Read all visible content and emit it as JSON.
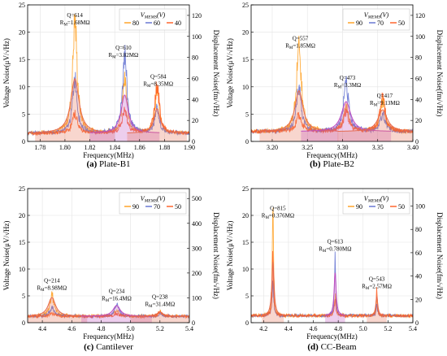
{
  "chart_data": [
    {
      "type": "line",
      "panel_letter": "(a)",
      "title": "Plate-B1",
      "xlabel": "Frequency(MHz)",
      "ylabel_left": "Voltage Noise(μV/√Hz)",
      "ylabel_right": "Displacement Noise(fm/√Hz)",
      "xlim": [
        1.77,
        1.9
      ],
      "ylim_left": [
        0,
        25
      ],
      "ylim_right": [
        0,
        130
      ],
      "xticks": [
        1.78,
        1.8,
        1.82,
        1.84,
        1.86,
        1.88,
        1.9
      ],
      "xtick_labels": [
        "1.78",
        "1.80",
        "1.82",
        "1.84",
        "1.86",
        "1.88",
        "1.90"
      ],
      "yticks_left": [
        0,
        5,
        10,
        15,
        20,
        25
      ],
      "yticks_right": [
        0,
        20,
        40,
        60,
        80,
        100,
        120
      ],
      "baseline": 1.5,
      "legend": {
        "title": "V_MEMS(V)",
        "title_main": "V",
        "title_sub": "MEMS",
        "title_tail": "(V)",
        "entries": [
          "80",
          "60",
          "40"
        ],
        "position": "top-right"
      },
      "series": [
        {
          "name": "80",
          "color": "#ff9e1b",
          "peaks": [
            {
              "x": 1.808,
              "y": 20.5,
              "w": 0.0022
            },
            {
              "x": 1.848,
              "y": 9.5,
              "w": 0.0022
            },
            {
              "x": 1.874,
              "y": 8.0,
              "w": 0.002
            }
          ]
        },
        {
          "name": "60",
          "color": "#5f6fd0",
          "peaks": [
            {
              "x": 1.808,
              "y": 10.0,
              "w": 0.0022
            },
            {
              "x": 1.848,
              "y": 14.5,
              "w": 0.0022
            },
            {
              "x": 1.874,
              "y": 4.5,
              "w": 0.002
            }
          ]
        },
        {
          "name": "40",
          "color": "#ff5a1e",
          "peaks": [
            {
              "x": 1.808,
              "y": 3.5,
              "w": 0.0025
            },
            {
              "x": 1.848,
              "y": 4.0,
              "w": 0.0025
            },
            {
              "x": 1.874,
              "y": 9.0,
              "w": 0.0022
            }
          ]
        }
      ],
      "fits": [
        {
          "x": 1.808,
          "y": 10.0,
          "w": 0.004,
          "color": "#e56a4f"
        },
        {
          "x": 1.848,
          "y": 7.0,
          "w": 0.0035,
          "color": "#c04fc0"
        },
        {
          "x": 1.874,
          "y": 4.5,
          "w": 0.003,
          "color": "#e56a4f"
        }
      ],
      "annotations": [
        {
          "q": "Q=614",
          "r_main": "R",
          "r_sub": "M",
          "r_val": "=1.68MΩ",
          "x": 1.808,
          "y": 22.8
        },
        {
          "q": "Q=610",
          "r_main": "R",
          "r_sub": "M",
          "r_val": "=3.82MΩ",
          "x": 1.847,
          "y": 16.8
        },
        {
          "q": "Q=584",
          "r_main": "R",
          "r_sub": "M",
          "r_val": "=8.35MΩ",
          "x": 1.875,
          "y": 11.5
        }
      ]
    },
    {
      "type": "line",
      "panel_letter": "(b)",
      "title": "Plate-B2",
      "xlabel": "Frequency(MHz)",
      "ylabel_left": "Voltage Noise(μV/√Hz)",
      "ylabel_right": "Displacement Noise(fm/√Hz)",
      "xlim": [
        3.17,
        3.4
      ],
      "ylim_left": [
        0,
        25
      ],
      "ylim_right": [
        0,
        130
      ],
      "xticks": [
        3.2,
        3.25,
        3.3,
        3.35,
        3.4
      ],
      "xtick_labels": [
        "3.20",
        "3.25",
        "3.30",
        "3.35",
        "3.40"
      ],
      "yticks_left": [
        0,
        5,
        10,
        15,
        20,
        25
      ],
      "yticks_right": [
        0,
        20,
        40,
        60,
        80,
        100,
        120
      ],
      "baseline": 1.8,
      "legend": {
        "title": "V_MEMS(V)",
        "title_main": "V",
        "title_sub": "MEMS",
        "title_tail": "(V)",
        "entries": [
          "90",
          "70",
          "50"
        ],
        "position": "top-right"
      },
      "series": [
        {
          "name": "90",
          "color": "#ff9e1b",
          "peaks": [
            {
              "x": 3.238,
              "y": 16.0,
              "w": 0.004
            },
            {
              "x": 3.305,
              "y": 4.5,
              "w": 0.0045
            },
            {
              "x": 3.357,
              "y": 5.5,
              "w": 0.0045
            }
          ]
        },
        {
          "name": "70",
          "color": "#5f6fd0",
          "peaks": [
            {
              "x": 3.238,
              "y": 8.5,
              "w": 0.004
            },
            {
              "x": 3.305,
              "y": 8.5,
              "w": 0.0045
            },
            {
              "x": 3.357,
              "y": 3.0,
              "w": 0.0045
            }
          ]
        },
        {
          "name": "50",
          "color": "#ff5a1e",
          "peaks": [
            {
              "x": 3.238,
              "y": 3.0,
              "w": 0.0045
            },
            {
              "x": 3.305,
              "y": 3.5,
              "w": 0.005
            },
            {
              "x": 3.357,
              "y": 6.0,
              "w": 0.0045
            }
          ]
        }
      ],
      "fits": [
        {
          "x": 3.238,
          "y": 7.5,
          "w": 0.007,
          "color": "#e56a4f"
        },
        {
          "x": 3.305,
          "y": 5.5,
          "w": 0.008,
          "color": "#c04fc0"
        },
        {
          "x": 3.357,
          "y": 4.0,
          "w": 0.008,
          "color": "#e56a4f"
        }
      ],
      "annotations": [
        {
          "q": "Q=557",
          "r_main": "R",
          "r_sub": "M",
          "r_val": "=1.85MΩ",
          "x": 3.24,
          "y": 18.5
        },
        {
          "q": "Q=473",
          "r_main": "R",
          "r_sub": "M",
          "r_val": "=3.3MΩ",
          "x": 3.307,
          "y": 11.3
        },
        {
          "q": "Q=417",
          "r_main": "R",
          "r_sub": "M",
          "r_val": "=9.13MΩ",
          "x": 3.36,
          "y": 8.0
        }
      ]
    },
    {
      "type": "line",
      "panel_letter": "(c)",
      "title": "Cantilever",
      "xlabel": "Frequency(MHz)",
      "ylabel_left": "Voltage Noise(μV/√Hz)",
      "ylabel_right": "Displacement Noise(fm/√Hz)",
      "xlim": [
        4.3,
        5.4
      ],
      "ylim_left": [
        0,
        25
      ],
      "ylim_right": [
        0,
        540
      ],
      "xticks": [
        4.4,
        4.6,
        4.8,
        5.0,
        5.2,
        5.4
      ],
      "xtick_labels": [
        "4.4",
        "4.6",
        "4.8",
        "5.0",
        "5.2",
        "5.4"
      ],
      "yticks_left": [
        0,
        5,
        10,
        15,
        20,
        25
      ],
      "yticks_right": [
        0,
        100,
        200,
        300,
        400,
        500
      ],
      "baseline": 1.2,
      "legend": {
        "title": "V_MEMS(V)",
        "title_main": "V",
        "title_sub": "MEMS",
        "title_tail": "(V)",
        "entries": [
          "90",
          "70",
          "50"
        ],
        "position": "top-right"
      },
      "series": [
        {
          "name": "90",
          "color": "#ff9e1b",
          "peaks": [
            {
              "x": 4.465,
              "y": 3.8,
              "w": 0.018
            },
            {
              "x": 4.905,
              "y": 1.2,
              "w": 0.016
            },
            {
              "x": 5.2,
              "y": 0.8,
              "w": 0.015
            }
          ]
        },
        {
          "name": "70",
          "color": "#5f6fd0",
          "peaks": [
            {
              "x": 4.465,
              "y": 1.5,
              "w": 0.02
            },
            {
              "x": 4.905,
              "y": 2.4,
              "w": 0.016
            },
            {
              "x": 5.2,
              "y": 0.4,
              "w": 0.015
            }
          ]
        },
        {
          "name": "50",
          "color": "#ff5a1e",
          "peaks": [
            {
              "x": 4.465,
              "y": 0.5,
              "w": 0.02
            },
            {
              "x": 4.905,
              "y": 0.5,
              "w": 0.02
            },
            {
              "x": 5.2,
              "y": 0.9,
              "w": 0.015
            }
          ]
        }
      ],
      "fits": [
        {
          "x": 4.465,
          "y": 3.5,
          "w": 0.03,
          "color": "#e56a4f"
        },
        {
          "x": 4.905,
          "y": 2.0,
          "w": 0.03,
          "color": "#c04fc0"
        },
        {
          "x": 5.2,
          "y": 0.8,
          "w": 0.025,
          "color": "#e56a4f"
        }
      ],
      "annotations": [
        {
          "q": "Q=214",
          "r_main": "R",
          "r_sub": "M",
          "r_val": "=8.98MΩ",
          "x": 4.465,
          "y": 7.5
        },
        {
          "q": "Q=234",
          "r_main": "R",
          "r_sub": "M",
          "r_val": "=16.4MΩ",
          "x": 4.905,
          "y": 5.5
        },
        {
          "q": "Q=238",
          "r_main": "R",
          "r_sub": "M",
          "r_val": "=31.4MΩ",
          "x": 5.2,
          "y": 4.5
        }
      ]
    },
    {
      "type": "line",
      "panel_letter": "(d)",
      "title": "CC-Beam",
      "xlabel": "Frequency(MHz)",
      "ylabel_left": "Voltage Noise(μV/√Hz)",
      "ylabel_right": "Displacement Noise(fm/√Hz)",
      "xlim": [
        4.1,
        5.4
      ],
      "ylim_left": [
        0,
        25
      ],
      "ylim_right": [
        0,
        115
      ],
      "xticks": [
        4.2,
        4.4,
        4.6,
        4.8,
        5.0,
        5.2,
        5.4
      ],
      "xtick_labels": [
        "4.2",
        "4.4",
        "4.6",
        "4.8",
        "5.0",
        "5.2",
        "5.4"
      ],
      "yticks_left": [
        0,
        5,
        10,
        15,
        20,
        25
      ],
      "yticks_right": [
        0,
        20,
        40,
        60,
        80,
        100
      ],
      "baseline": 1.3,
      "legend": {
        "title": "V_MEMS(V)",
        "title_main": "V",
        "title_sub": "MEMS",
        "title_tail": "(V)",
        "entries": [
          "90",
          "70",
          "50"
        ],
        "position": "top-right"
      },
      "series": [
        {
          "name": "90",
          "color": "#ff9e1b",
          "peaks": [
            {
              "x": 4.275,
              "y": 24.0,
              "w": 0.006
            },
            {
              "x": 4.775,
              "y": 4.0,
              "w": 0.007
            },
            {
              "x": 5.11,
              "y": 3.5,
              "w": 0.006
            }
          ]
        },
        {
          "name": "70",
          "color": "#5f6fd0",
          "peaks": [
            {
              "x": 4.275,
              "y": 6.0,
              "w": 0.007
            },
            {
              "x": 4.775,
              "y": 11.5,
              "w": 0.006
            },
            {
              "x": 5.11,
              "y": 2.0,
              "w": 0.007
            }
          ]
        },
        {
          "name": "50",
          "color": "#ff5a1e",
          "peaks": [
            {
              "x": 4.275,
              "y": 11.0,
              "w": 0.006
            },
            {
              "x": 4.775,
              "y": 3.0,
              "w": 0.008
            },
            {
              "x": 5.11,
              "y": 4.5,
              "w": 0.006
            }
          ]
        }
      ],
      "fits": [
        {
          "x": 4.275,
          "y": 10.0,
          "w": 0.011,
          "color": "#e56a4f"
        },
        {
          "x": 4.775,
          "y": 8.0,
          "w": 0.01,
          "color": "#c04fc0"
        },
        {
          "x": 5.11,
          "y": 3.5,
          "w": 0.01,
          "color": "#e56a4f"
        }
      ],
      "annotations": [
        {
          "q": "Q=815",
          "r_main": "R",
          "r_sub": "M",
          "r_val": "=0.376MΩ",
          "x": 4.315,
          "y": 21.0
        },
        {
          "q": "Q=613",
          "r_main": "R",
          "r_sub": "M",
          "r_val": "=0.780MΩ",
          "x": 4.775,
          "y": 14.8
        },
        {
          "q": "Q=543",
          "r_main": "R",
          "r_sub": "M",
          "r_val": "=2.57MΩ",
          "x": 5.11,
          "y": 7.8
        }
      ]
    }
  ]
}
